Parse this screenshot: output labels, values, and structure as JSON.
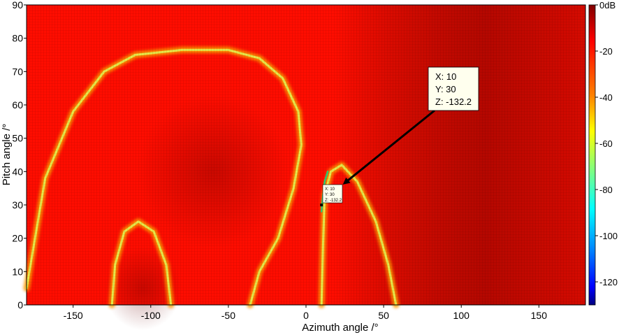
{
  "chart_data": {
    "type": "heatmap",
    "title": "",
    "xlabel": "Azimuth angle /°",
    "ylabel": "Pitch angle /°",
    "xlim": [
      -180,
      180
    ],
    "ylim": [
      0,
      90
    ],
    "x_ticks": [
      -150,
      -100,
      -50,
      0,
      50,
      100,
      150
    ],
    "y_ticks": [
      0,
      10,
      20,
      30,
      40,
      50,
      60,
      70,
      80,
      90
    ],
    "colorbar": {
      "range": [
        -130,
        0
      ],
      "ticks": [
        {
          "value": 0,
          "label": "0dB"
        },
        {
          "value": -20,
          "label": "-20"
        },
        {
          "value": -40,
          "label": "-40"
        },
        {
          "value": -60,
          "label": "-60"
        },
        {
          "value": -80,
          "label": "-80"
        },
        {
          "value": -100,
          "label": "-100"
        },
        {
          "value": -120,
          "label": "-120"
        }
      ]
    },
    "background_level_db": -18,
    "ridges": [
      {
        "name": "outer-arch",
        "points": [
          [
            -180,
            5
          ],
          [
            -168,
            38
          ],
          [
            -150,
            58
          ],
          [
            -130,
            70
          ],
          [
            -110,
            75
          ],
          [
            -80,
            76.5
          ],
          [
            -50,
            76.5
          ],
          [
            -30,
            74
          ],
          [
            -15,
            68
          ],
          [
            -5,
            58
          ],
          [
            -3,
            48
          ],
          [
            -8,
            35
          ],
          [
            -18,
            20
          ],
          [
            -30,
            10
          ],
          [
            -36,
            0
          ]
        ]
      },
      {
        "name": "inner-left-lobe",
        "points": [
          [
            -125,
            0
          ],
          [
            -123,
            12
          ],
          [
            -117,
            22
          ],
          [
            -108,
            25
          ],
          [
            -98,
            22
          ],
          [
            -90,
            12
          ],
          [
            -87,
            0
          ]
        ]
      },
      {
        "name": "right-lobe",
        "points": [
          [
            10,
            0
          ],
          [
            11,
            18
          ],
          [
            12,
            33
          ],
          [
            16,
            40
          ],
          [
            23,
            42
          ],
          [
            33,
            37
          ],
          [
            45,
            25
          ],
          [
            53,
            12
          ],
          [
            58,
            0
          ]
        ]
      }
    ],
    "null_point": {
      "x": 10,
      "y": 30,
      "z": -132.2
    },
    "datatips": {
      "large": {
        "x_label": "X: 10",
        "y_label": "Y: 30",
        "z_label": "Z: -132.2"
      },
      "small": {
        "x_label": "X: 10",
        "y_label": "Y: 30",
        "z_label": "Z: -132.2"
      }
    },
    "grid": true,
    "legend": "none"
  }
}
